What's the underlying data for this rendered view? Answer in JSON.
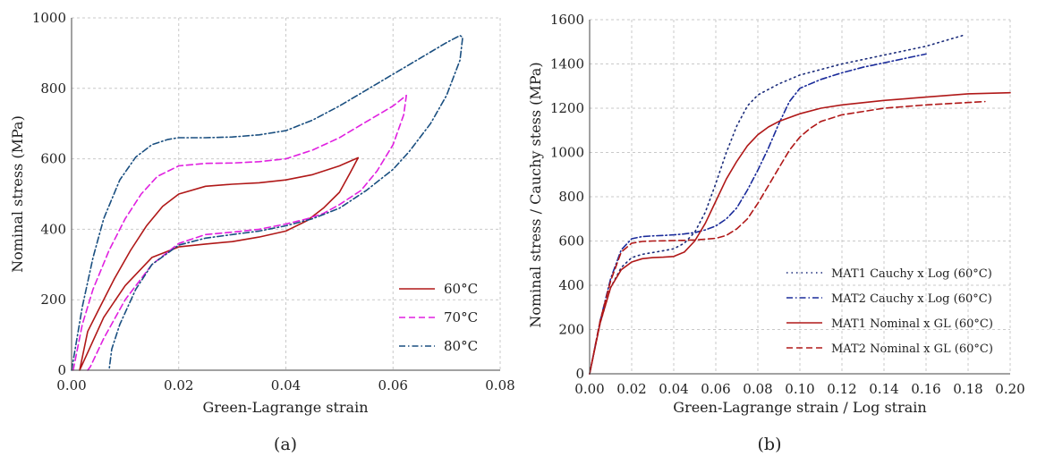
{
  "chart_data": [
    {
      "type": "line",
      "caption": "(a)",
      "xlabel": "Green-Lagrange strain",
      "ylabel": "Nominal stress (MPa)",
      "xlim": [
        0,
        0.08
      ],
      "ylim": [
        0,
        1000
      ],
      "xticks": [
        "0.00",
        "0.02",
        "0.04",
        "0.06",
        "0.08"
      ],
      "yticks": [
        "0",
        "200",
        "400",
        "600",
        "800",
        "1000"
      ],
      "grid": true,
      "legend_position": "bottom-right",
      "series": [
        {
          "name": "60°C",
          "color": "#b01818",
          "style": "solid",
          "x": [
            0.0015,
            0.003,
            0.005,
            0.008,
            0.011,
            0.014,
            0.017,
            0.02,
            0.025,
            0.03,
            0.035,
            0.04,
            0.045,
            0.05,
            0.0535,
            0.052,
            0.05,
            0.047,
            0.044,
            0.04,
            0.035,
            0.03,
            0.025,
            0.02,
            0.015,
            0.01,
            0.006,
            0.003,
            0.0015
          ],
          "y": [
            0,
            110,
            170,
            260,
            340,
            410,
            465,
            500,
            522,
            528,
            532,
            540,
            555,
            580,
            603,
            560,
            505,
            460,
            425,
            395,
            378,
            365,
            358,
            350,
            320,
            240,
            150,
            50,
            0
          ]
        },
        {
          "name": "70°C",
          "color": "#e020e0",
          "style": "dashed",
          "x": [
            0.0003,
            0.002,
            0.004,
            0.007,
            0.01,
            0.013,
            0.016,
            0.02,
            0.025,
            0.03,
            0.035,
            0.04,
            0.045,
            0.05,
            0.055,
            0.06,
            0.0625,
            0.062,
            0.06,
            0.057,
            0.054,
            0.05,
            0.047,
            0.044,
            0.04,
            0.035,
            0.03,
            0.025,
            0.02,
            0.015,
            0.01,
            0.006,
            0.0035,
            0.003
          ],
          "y": [
            0,
            130,
            230,
            340,
            430,
            500,
            550,
            580,
            587,
            588,
            592,
            600,
            625,
            660,
            705,
            750,
            780,
            725,
            640,
            565,
            510,
            470,
            445,
            430,
            415,
            400,
            392,
            385,
            360,
            300,
            200,
            90,
            10,
            0
          ]
        },
        {
          "name": "80°C",
          "color": "#1a4f80",
          "style": "dashdot",
          "x": [
            0.0,
            0.002,
            0.004,
            0.006,
            0.009,
            0.012,
            0.015,
            0.018,
            0.02,
            0.025,
            0.03,
            0.035,
            0.04,
            0.045,
            0.05,
            0.055,
            0.06,
            0.065,
            0.07,
            0.0725,
            0.073,
            0.0725,
            0.07,
            0.067,
            0.063,
            0.06,
            0.055,
            0.05,
            0.045,
            0.04,
            0.035,
            0.03,
            0.025,
            0.02,
            0.015,
            0.012,
            0.009,
            0.0075,
            0.007
          ],
          "y": [
            0,
            180,
            320,
            430,
            540,
            605,
            640,
            655,
            660,
            660,
            662,
            668,
            680,
            710,
            750,
            795,
            840,
            885,
            930,
            950,
            945,
            880,
            780,
            700,
            620,
            570,
            510,
            460,
            430,
            410,
            395,
            385,
            375,
            355,
            300,
            230,
            130,
            60,
            0
          ]
        }
      ]
    },
    {
      "type": "line",
      "caption": "(b)",
      "xlabel": "Green-Lagrange strain / Log strain",
      "ylabel": "Nominal stress / Cauchy stess (MPa)",
      "xlim": [
        0,
        0.2
      ],
      "ylim": [
        0,
        1600
      ],
      "xticks": [
        "0.00",
        "0.02",
        "0.04",
        "0.06",
        "0.08",
        "0.10",
        "0.12",
        "0.14",
        "0.16",
        "0.18",
        "0.20"
      ],
      "yticks": [
        "0",
        "200",
        "400",
        "600",
        "800",
        "1000",
        "1200",
        "1400",
        "1600"
      ],
      "grid": true,
      "legend_position": "bottom-right",
      "series": [
        {
          "name": "MAT1 Cauchy x Log (60°C)",
          "color": "#1a2b7a",
          "style": "dotted",
          "x": [
            0.0,
            0.005,
            0.01,
            0.015,
            0.02,
            0.025,
            0.03,
            0.035,
            0.04,
            0.045,
            0.05,
            0.055,
            0.06,
            0.065,
            0.07,
            0.075,
            0.08,
            0.09,
            0.1,
            0.12,
            0.14,
            0.16,
            0.178
          ],
          "y": [
            0,
            230,
            390,
            480,
            525,
            540,
            548,
            556,
            565,
            590,
            640,
            730,
            860,
            1000,
            1120,
            1210,
            1260,
            1310,
            1350,
            1400,
            1440,
            1480,
            1530
          ]
        },
        {
          "name": "MAT2 Cauchy x Log (60°C)",
          "color": "#1a2b9a",
          "style": "dashdot",
          "x": [
            0.0,
            0.005,
            0.01,
            0.015,
            0.02,
            0.025,
            0.03,
            0.035,
            0.04,
            0.045,
            0.05,
            0.055,
            0.06,
            0.065,
            0.07,
            0.075,
            0.08,
            0.085,
            0.09,
            0.095,
            0.1,
            0.11,
            0.12,
            0.13,
            0.14,
            0.15,
            0.16
          ],
          "y": [
            0,
            240,
            430,
            560,
            610,
            620,
            623,
            625,
            628,
            632,
            638,
            650,
            668,
            700,
            750,
            830,
            920,
            1020,
            1130,
            1230,
            1290,
            1330,
            1360,
            1385,
            1405,
            1425,
            1445
          ]
        },
        {
          "name": "MAT1 Nominal x GL (60°C)",
          "color": "#b01818",
          "style": "solid",
          "x": [
            0.0,
            0.005,
            0.01,
            0.015,
            0.02,
            0.025,
            0.03,
            0.035,
            0.04,
            0.045,
            0.05,
            0.055,
            0.06,
            0.065,
            0.07,
            0.075,
            0.08,
            0.085,
            0.09,
            0.1,
            0.11,
            0.12,
            0.14,
            0.16,
            0.18,
            0.2
          ],
          "y": [
            0,
            230,
            390,
            470,
            505,
            520,
            525,
            527,
            530,
            550,
            600,
            680,
            780,
            880,
            960,
            1030,
            1080,
            1115,
            1140,
            1175,
            1200,
            1215,
            1235,
            1250,
            1265,
            1270
          ]
        },
        {
          "name": "MAT2 Nominal x GL (60°C)",
          "color": "#b01818",
          "style": "dashed",
          "x": [
            0.0,
            0.005,
            0.01,
            0.015,
            0.02,
            0.025,
            0.03,
            0.035,
            0.04,
            0.045,
            0.05,
            0.055,
            0.06,
            0.065,
            0.07,
            0.075,
            0.08,
            0.085,
            0.09,
            0.095,
            0.1,
            0.105,
            0.11,
            0.12,
            0.14,
            0.16,
            0.188
          ],
          "y": [
            0,
            240,
            420,
            550,
            590,
            598,
            600,
            601,
            602,
            603,
            605,
            608,
            612,
            625,
            655,
            700,
            770,
            850,
            930,
            1010,
            1070,
            1110,
            1140,
            1170,
            1200,
            1215,
            1230
          ]
        }
      ]
    }
  ]
}
